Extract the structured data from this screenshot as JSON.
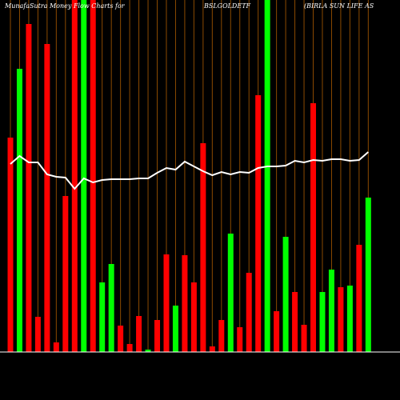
{
  "chart_data": {
    "type": "bar",
    "title": "MunafaSutra  Money Flow  Charts for",
    "symbol": "BSLGOLDETF",
    "company": "(BIRLA SUN LIFE AS",
    "values": [
      268,
      354,
      410,
      44,
      385,
      12,
      195,
      440,
      440,
      440,
      87,
      110,
      33,
      10,
      45,
      3,
      40,
      122,
      58,
      121,
      87,
      261,
      7,
      40,
      148,
      31,
      99,
      321,
      440,
      51,
      144,
      75,
      34,
      311,
      75,
      103,
      81,
      83,
      134,
      193
    ],
    "colors": [
      "#ff0000",
      "#00ff00",
      "#ff0000",
      "#ff0000",
      "#ff0000",
      "#ff0000",
      "#ff0000",
      "#ff0000",
      "#00ff00",
      "#ff0000",
      "#00ff00",
      "#00ff00",
      "#ff0000",
      "#ff0000",
      "#ff0000",
      "#00ff00",
      "#ff0000",
      "#ff0000",
      "#00ff00",
      "#ff0000",
      "#ff0000",
      "#ff0000",
      "#ff0000",
      "#ff0000",
      "#00ff00",
      "#ff0000",
      "#ff0000",
      "#ff0000",
      "#00ff00",
      "#ff0000",
      "#00ff00",
      "#ff0000",
      "#ff0000",
      "#ff0000",
      "#00ff00",
      "#00ff00",
      "#ff0000",
      "#00ff00",
      "#ff0000",
      "#00ff00"
    ],
    "line": {
      "color": "#ffffff",
      "values": [
        235,
        245,
        237,
        237,
        222,
        219,
        218,
        204,
        217,
        212,
        215,
        216,
        216,
        216,
        217,
        217,
        224,
        230,
        228,
        238,
        232,
        226,
        221,
        225,
        222,
        225,
        224,
        230,
        232,
        232,
        233,
        239,
        237,
        240,
        239,
        241,
        241,
        239,
        240,
        250
      ]
    },
    "ylim": [
      0,
      440
    ],
    "grid_color": "#8b4a00"
  }
}
